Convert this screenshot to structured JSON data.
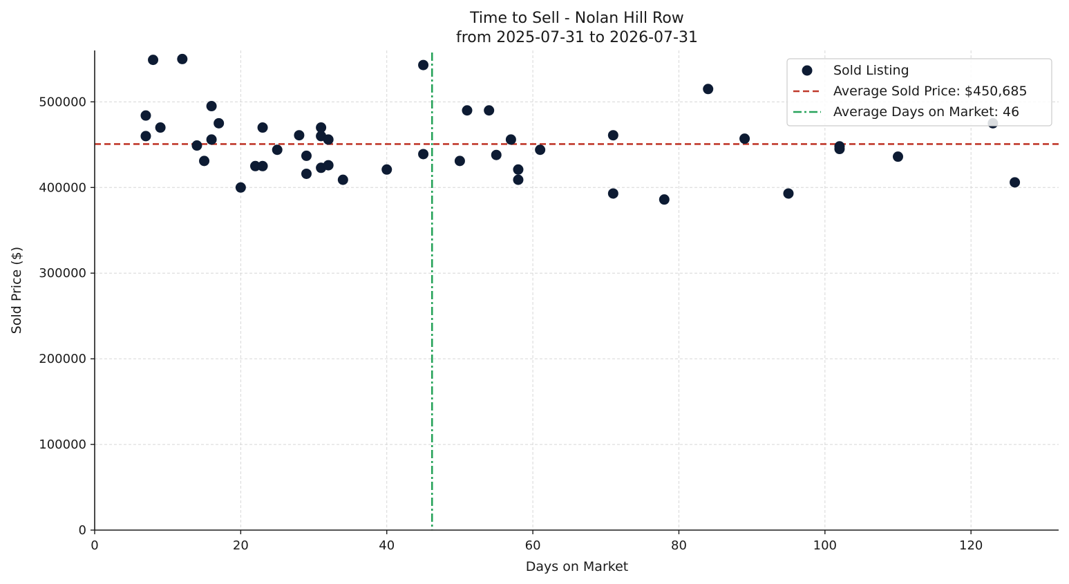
{
  "chart_data": {
    "type": "scatter",
    "title": "Time to Sell - Nolan Hill Row",
    "subtitle": "from 2025-07-31 to 2026-07-31",
    "xlabel": "Days on Market",
    "ylabel": "Sold Price ($)",
    "xlim": [
      0,
      132
    ],
    "ylim": [
      0,
      560000
    ],
    "xticks": [
      0,
      20,
      40,
      60,
      80,
      100,
      120
    ],
    "yticks": [
      0,
      100000,
      200000,
      300000,
      400000,
      500000
    ],
    "grid": true,
    "legend_position": "top-right",
    "colors": {
      "points": "#0d1b33",
      "avg_price_line": "#c0392b",
      "avg_days_line": "#27a35a"
    },
    "series": [
      {
        "name": "Sold Listing",
        "x": [
          7,
          7,
          8,
          9,
          12,
          14,
          15,
          16,
          16,
          17,
          20,
          22,
          23,
          23,
          25,
          28,
          29,
          29,
          31,
          31,
          31,
          32,
          32,
          34,
          40,
          45,
          45,
          50,
          51,
          54,
          55,
          57,
          58,
          58,
          61,
          71,
          71,
          78,
          84,
          89,
          95,
          102,
          102,
          110,
          123,
          126
        ],
        "y": [
          484000,
          460000,
          549000,
          470000,
          550000,
          449000,
          431000,
          495000,
          456000,
          475000,
          400000,
          425000,
          425000,
          470000,
          444000,
          461000,
          437000,
          416000,
          470000,
          460000,
          423000,
          456000,
          426000,
          409000,
          421000,
          543000,
          439000,
          431000,
          490000,
          490000,
          438000,
          456000,
          421000,
          409000,
          444000,
          393000,
          461000,
          386000,
          515000,
          457000,
          393000,
          448000,
          445000,
          436000,
          475000,
          406000
        ]
      }
    ],
    "reference_lines": [
      {
        "name": "Average Sold Price: $450,685",
        "axis": "y",
        "value": 450685,
        "style": "dashed"
      },
      {
        "name": "Average Days on Market: 46",
        "axis": "x",
        "value": 46.2,
        "style": "dashdot"
      }
    ]
  }
}
